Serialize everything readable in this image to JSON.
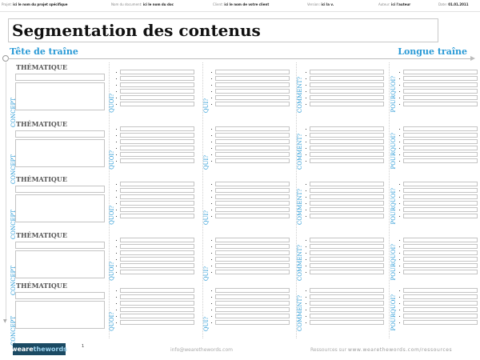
{
  "meta": [
    {
      "label": "Projet",
      "value": "ici le nom du projet spécifique"
    },
    {
      "label": "Nom du document",
      "value": "ici le nom du doc"
    },
    {
      "label": "Client",
      "value": "ici le nom de votre client"
    },
    {
      "label": "Version",
      "value": "ici la v."
    },
    {
      "label": "Auteur",
      "value": "ici l'auteur"
    },
    {
      "label": "Date",
      "value": "01.01.2011"
    }
  ],
  "title": "Segmentation des contenus",
  "head_left": "Tête de traîne",
  "head_right": "Longue traîne",
  "labels": {
    "thematique": "THÉMATIQUE",
    "concept": "CONCEPT",
    "quoi": "QUOI?",
    "qui": "QUI?",
    "comment": "COMMENT?",
    "pourquoi": "POURQUOI?"
  },
  "footer": {
    "logo_a": "weare",
    "logo_b": "thewords",
    "page": "1",
    "email": "info@wearethewords.com",
    "resources_label": "Ressources sur",
    "resources_url": "www.wearethewords.com/ressources"
  }
}
